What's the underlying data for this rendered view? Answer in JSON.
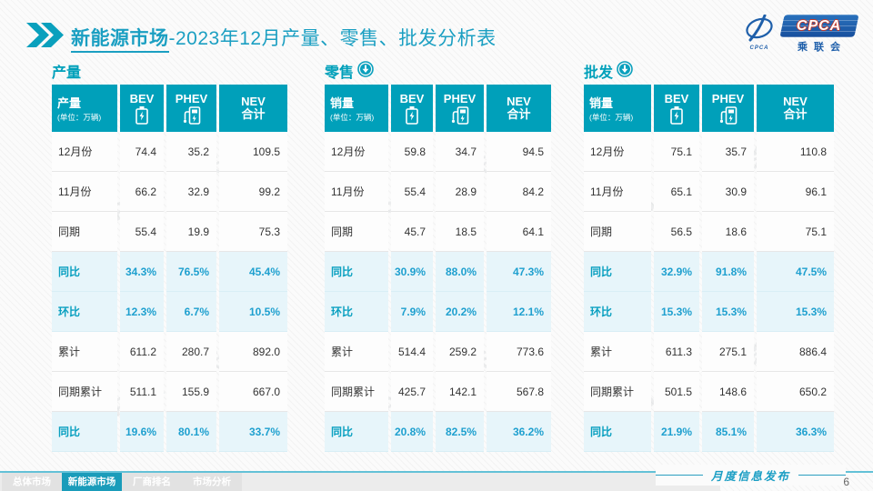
{
  "title": {
    "highlight": "新能源市场",
    "rest": "-2023年12月产量、零售、批发分析表"
  },
  "logo": {
    "brand": "CPCA",
    "brand_small": "CPCA",
    "sub": "乘联会"
  },
  "watermark": "CPCA 乘联会",
  "colors": {
    "teal": "#00a0ba",
    "accent_value": "#1fa0cf",
    "highlight_bg": "#e7f5fa",
    "title": "#1b9fc2",
    "logo_blue": "#1e5faa"
  },
  "tables": [
    {
      "section_title": "产量",
      "row_header": "产量",
      "unit": "(单位：万辆)",
      "col_bev": "BEV",
      "col_phev": "PHEV",
      "col_nev_line1": "NEV",
      "col_nev_line2": "合计",
      "rows": [
        {
          "label": "12月份",
          "bev": "74.4",
          "phev": "35.2",
          "nev": "109.5",
          "highlight": false
        },
        {
          "label": "11月份",
          "bev": "66.2",
          "phev": "32.9",
          "nev": "99.2",
          "highlight": false
        },
        {
          "label": "同期",
          "bev": "55.4",
          "phev": "19.9",
          "nev": "75.3",
          "highlight": false
        },
        {
          "label": "同比",
          "bev": "34.3%",
          "phev": "76.5%",
          "nev": "45.4%",
          "highlight": true
        },
        {
          "label": "环比",
          "bev": "12.3%",
          "phev": "6.7%",
          "nev": "10.5%",
          "highlight": true
        },
        {
          "label": "累计",
          "bev": "611.2",
          "phev": "280.7",
          "nev": "892.0",
          "highlight": false
        },
        {
          "label": "同期累计",
          "bev": "511.1",
          "phev": "155.9",
          "nev": "667.0",
          "highlight": false
        },
        {
          "label": "同比",
          "bev": "19.6%",
          "phev": "80.1%",
          "nev": "33.7%",
          "highlight": true
        }
      ]
    },
    {
      "section_title": "零售",
      "row_header": "销量",
      "unit": "(单位：万辆)",
      "col_bev": "BEV",
      "col_phev": "PHEV",
      "col_nev_line1": "NEV",
      "col_nev_line2": "合计",
      "rows": [
        {
          "label": "12月份",
          "bev": "59.8",
          "phev": "34.7",
          "nev": "94.5",
          "highlight": false
        },
        {
          "label": "11月份",
          "bev": "55.4",
          "phev": "28.9",
          "nev": "84.2",
          "highlight": false
        },
        {
          "label": "同期",
          "bev": "45.7",
          "phev": "18.5",
          "nev": "64.1",
          "highlight": false
        },
        {
          "label": "同比",
          "bev": "30.9%",
          "phev": "88.0%",
          "nev": "47.3%",
          "highlight": true
        },
        {
          "label": "环比",
          "bev": "7.9%",
          "phev": "20.2%",
          "nev": "12.1%",
          "highlight": true
        },
        {
          "label": "累计",
          "bev": "514.4",
          "phev": "259.2",
          "nev": "773.6",
          "highlight": false
        },
        {
          "label": "同期累计",
          "bev": "425.7",
          "phev": "142.1",
          "nev": "567.8",
          "highlight": false
        },
        {
          "label": "同比",
          "bev": "20.8%",
          "phev": "82.5%",
          "nev": "36.2%",
          "highlight": true
        }
      ]
    },
    {
      "section_title": "批发",
      "row_header": "销量",
      "unit": "(单位：万辆)",
      "col_bev": "BEV",
      "col_phev": "PHEV",
      "col_nev_line1": "NEV",
      "col_nev_line2": "合计",
      "rows": [
        {
          "label": "12月份",
          "bev": "75.1",
          "phev": "35.7",
          "nev": "110.8",
          "highlight": false
        },
        {
          "label": "11月份",
          "bev": "65.1",
          "phev": "30.9",
          "nev": "96.1",
          "highlight": false
        },
        {
          "label": "同期",
          "bev": "56.5",
          "phev": "18.6",
          "nev": "75.1",
          "highlight": false
        },
        {
          "label": "同比",
          "bev": "32.9%",
          "phev": "91.8%",
          "nev": "47.5%",
          "highlight": true
        },
        {
          "label": "环比",
          "bev": "15.3%",
          "phev": "15.3%",
          "nev": "15.3%",
          "highlight": true
        },
        {
          "label": "累计",
          "bev": "611.3",
          "phev": "275.1",
          "nev": "886.4",
          "highlight": false
        },
        {
          "label": "同期累计",
          "bev": "501.5",
          "phev": "148.6",
          "nev": "650.2",
          "highlight": false
        },
        {
          "label": "同比",
          "bev": "21.9%",
          "phev": "85.1%",
          "nev": "36.3%",
          "highlight": true
        }
      ]
    }
  ],
  "footer": {
    "tabs": [
      {
        "label": "总体市场",
        "active": false
      },
      {
        "label": "新能源市场",
        "active": true
      },
      {
        "label": "厂商排名",
        "active": false
      },
      {
        "label": "市场分析",
        "active": false
      }
    ],
    "publish_label": "月度信息发布",
    "page_number": "6"
  }
}
